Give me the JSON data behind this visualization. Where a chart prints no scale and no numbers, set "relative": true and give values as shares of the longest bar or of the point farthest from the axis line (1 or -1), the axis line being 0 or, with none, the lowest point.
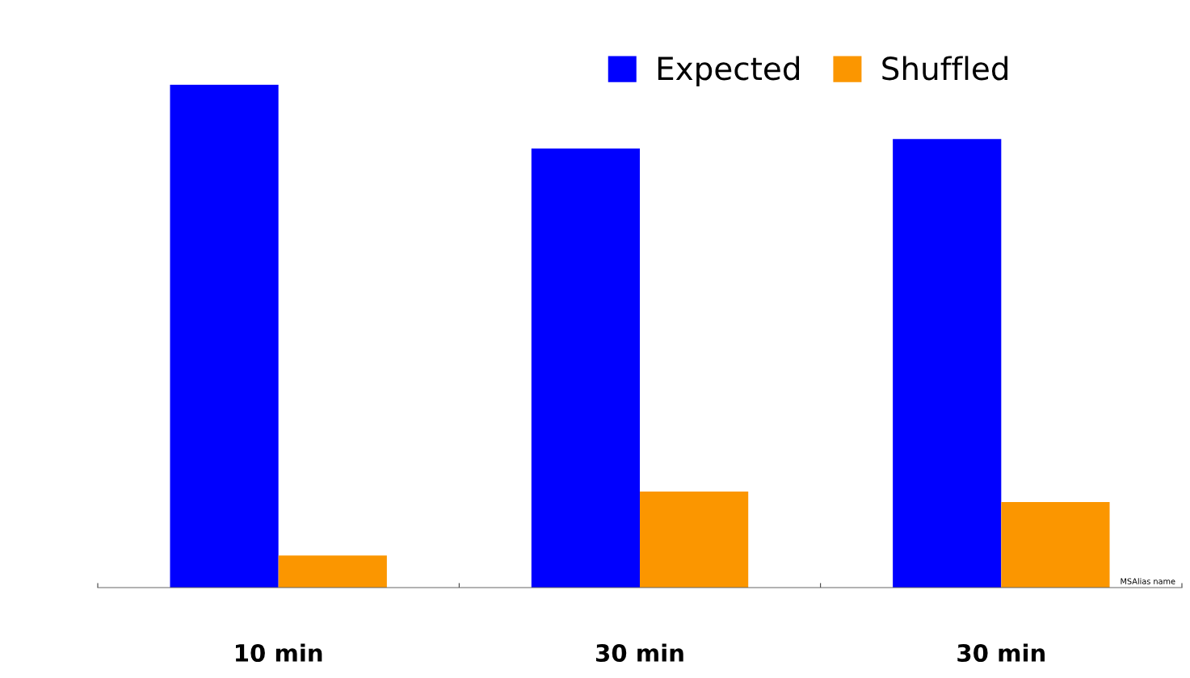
{
  "chart_data": {
    "type": "bar",
    "relative": true,
    "categories": [
      "10 min",
      "30 min",
      "30 min"
    ],
    "series": [
      {
        "name": "Expected",
        "color": "#0000ff",
        "values": [
          1,
          0.873,
          0.892
        ]
      },
      {
        "name": "Shuffled",
        "color": "#fb9600",
        "values": [
          0.064,
          0.191,
          0.17
        ]
      }
    ],
    "legend": "top right",
    "annotations": [
      "MSAlias name"
    ]
  }
}
